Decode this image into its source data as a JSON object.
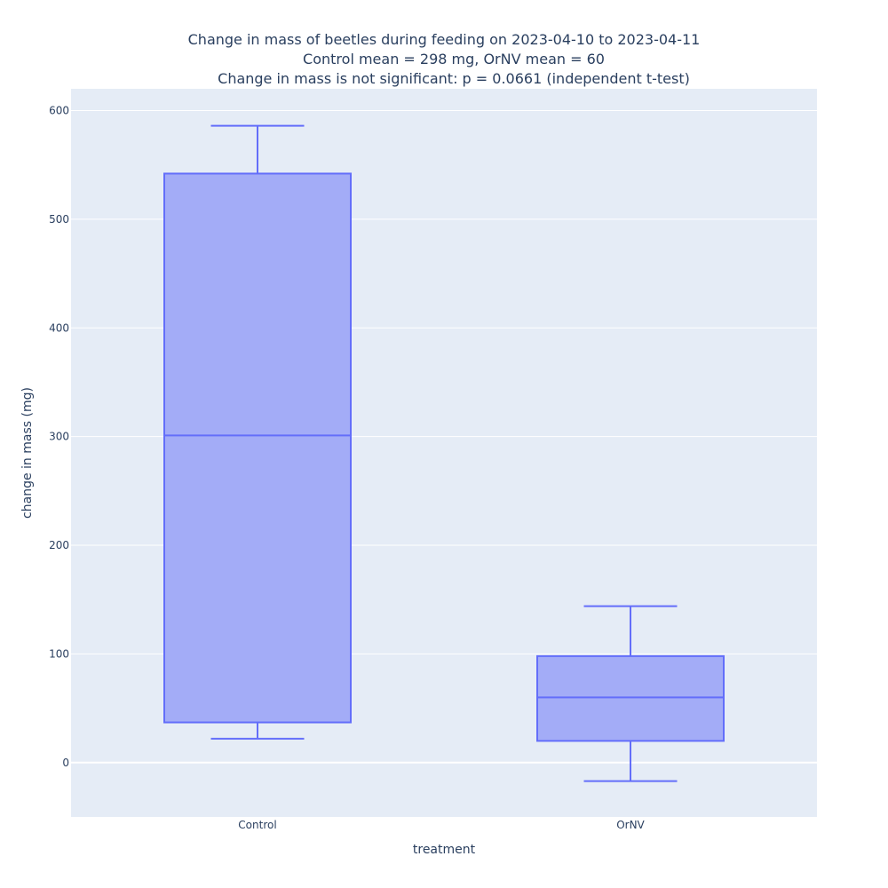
{
  "chart_data": {
    "type": "box",
    "title": [
      "Change in mass of beetles during feeding on 2023-04-10 to 2023-04-11",
      "Control mean = 298 mg, OrNV mean = 60",
      "Change in mass is not significant: p = 0.0661 (independent t-test)"
    ],
    "xlabel": "treatment",
    "ylabel": "change in mass (mg)",
    "ylim": [
      -50,
      620
    ],
    "yticks": [
      0,
      100,
      200,
      300,
      400,
      500,
      600
    ],
    "categories": [
      "Control",
      "OrNV"
    ],
    "boxes": [
      {
        "name": "Control",
        "lowerfence": 22,
        "q1": 37,
        "median": 301,
        "q3": 542,
        "upperfence": 586
      },
      {
        "name": "OrNV",
        "lowerfence": -17,
        "q1": 20,
        "median": 60,
        "q3": 98,
        "upperfence": 144
      }
    ],
    "colors": {
      "plot_bg": "#e5ecf6",
      "grid": "#ffffff",
      "box_line": "#636efa",
      "box_fill": "#a3acf7",
      "text": "#2a3f5f"
    }
  }
}
